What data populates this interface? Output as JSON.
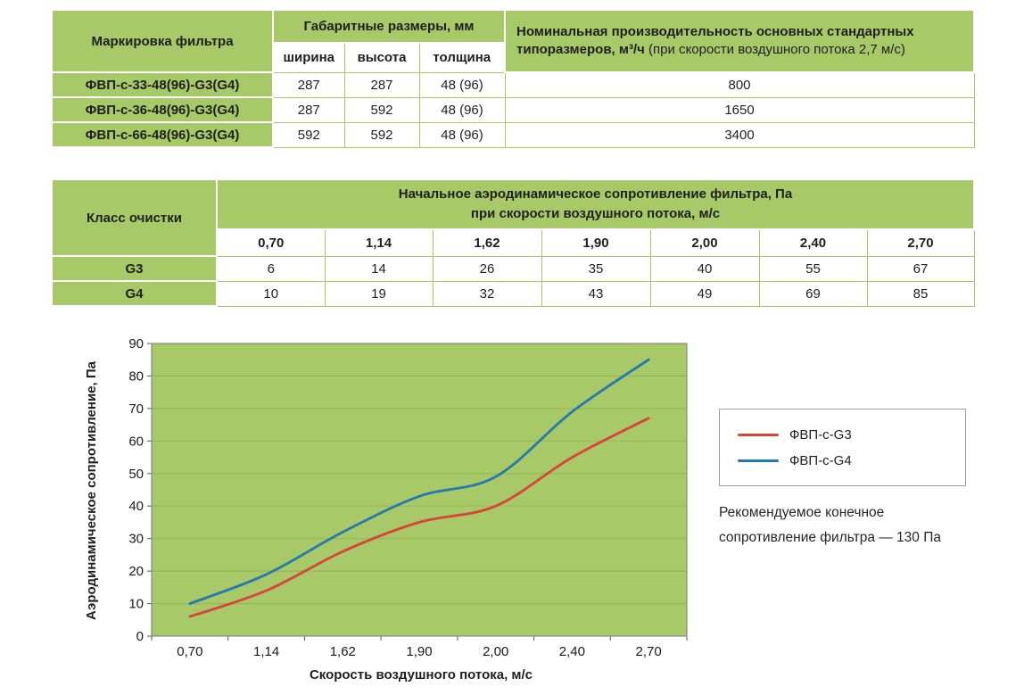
{
  "colors": {
    "table_green": "#a7c968",
    "text": "#1f1f1f"
  },
  "table1": {
    "headers": {
      "marking": "Маркировка фильтра",
      "dimensions": "Габаритные размеры, мм",
      "width": "ширина",
      "height": "высота",
      "thickness": "толщина",
      "capacity_bold": "Номинальная производительность основных стандартных типоразмеров, м³/ч",
      "capacity_normal": " (при скорости воздушного потока 2,7 м/с)"
    },
    "rows": [
      {
        "marking": "ФВП-с-33-48(96)-G3(G4)",
        "width": "287",
        "height": "287",
        "thickness": "48 (96)",
        "capacity": "800"
      },
      {
        "marking": "ФВП-с-36-48(96)-G3(G4)",
        "width": "287",
        "height": "592",
        "thickness": "48 (96)",
        "capacity": "1650"
      },
      {
        "marking": "ФВП-с-66-48(96)-G3(G4)",
        "width": "592",
        "height": "592",
        "thickness": "48 (96)",
        "capacity": "3400"
      }
    ]
  },
  "table2": {
    "headers": {
      "class": "Класс очистки",
      "resistance_line1": "Начальное аэродинамическое сопротивление фильтра, Па",
      "resistance_line2": "при скорости воздушного потока, м/с"
    },
    "speeds": [
      "0,70",
      "1,14",
      "1,62",
      "1,90",
      "2,00",
      "2,40",
      "2,70"
    ],
    "rows": [
      {
        "class": "G3",
        "values": [
          "6",
          "14",
          "26",
          "35",
          "40",
          "55",
          "67"
        ]
      },
      {
        "class": "G4",
        "values": [
          "10",
          "19",
          "32",
          "43",
          "49",
          "69",
          "85"
        ]
      }
    ]
  },
  "chart_data": {
    "type": "line",
    "x_categories": [
      "0,70",
      "1,14",
      "1,62",
      "1,90",
      "2,00",
      "2,40",
      "2,70"
    ],
    "series": [
      {
        "name": "ФВП-с-G3",
        "color": "#d9433a",
        "values": [
          6,
          14,
          26,
          35,
          40,
          55,
          67
        ]
      },
      {
        "name": "ФВП-с-G4",
        "color": "#2878b0",
        "values": [
          10,
          19,
          32,
          43,
          49,
          69,
          85
        ]
      }
    ],
    "title": "",
    "ylabel": "Аэродинамическое сопротивление, Па",
    "xlabel": "Скорость воздушного потока, м/с",
    "ylim": [
      0,
      90
    ],
    "ytick_step": 10,
    "grid": true,
    "legend_position": "right",
    "plot_bg": "#a7c968",
    "grid_color": "#95b957"
  },
  "note": {
    "line1": "Рекомендуемое конечное",
    "line2": "сопротивление фильтра — 130 Па"
  }
}
